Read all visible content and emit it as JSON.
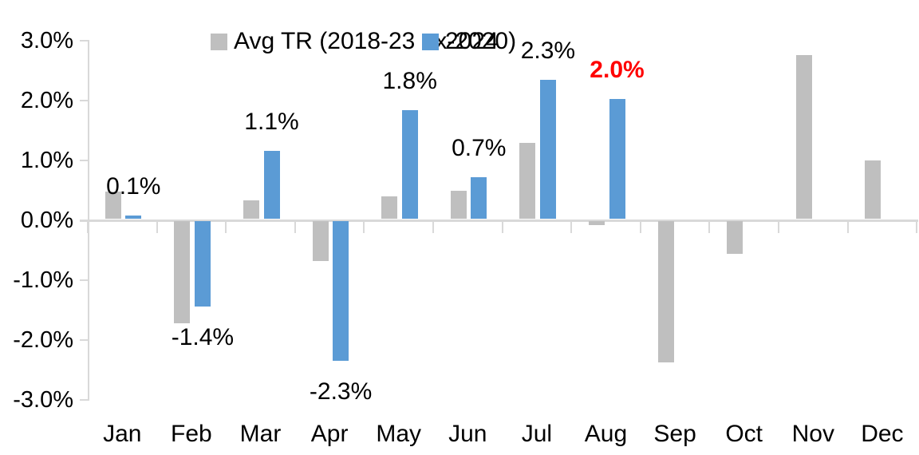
{
  "chart_data": {
    "type": "bar",
    "title": "",
    "categories": [
      "Jan",
      "Feb",
      "Mar",
      "Apr",
      "May",
      "Jun",
      "Jul",
      "Aug",
      "Sep",
      "Oct",
      "Nov",
      "Dec"
    ],
    "series": [
      {
        "name": "Avg TR (2018-23 ex-2020)",
        "color": "#BFBFBF",
        "values": [
          0.45,
          -1.7,
          0.31,
          -0.66,
          0.37,
          0.47,
          1.27,
          -0.06,
          -2.36,
          -0.55,
          2.73,
          0.98
        ]
      },
      {
        "name": "2024",
        "color": "#5B9BD5",
        "values": [
          0.06,
          -1.42,
          1.14,
          -2.33,
          1.82,
          0.69,
          2.32,
          2.0,
          null,
          null,
          null,
          null
        ],
        "data_labels": [
          "0.1%",
          "-1.4%",
          "1.1%",
          "-2.3%",
          "1.8%",
          "0.7%",
          "2.3%",
          "2.0%",
          null,
          null,
          null,
          null
        ],
        "label_highlight": {
          "index": 7,
          "color": "#FF0000",
          "bold": true
        }
      }
    ],
    "y_ticks": [
      {
        "label": "3.0%",
        "value": 3.0
      },
      {
        "label": "2.0%",
        "value": 2.0
      },
      {
        "label": "1.0%",
        "value": 1.0
      },
      {
        "label": "0.0%",
        "value": 0.0
      },
      {
        "label": "-1.0%",
        "value": -1.0
      },
      {
        "label": "-2.0%",
        "value": -2.0
      },
      {
        "label": "-3.0%",
        "value": -3.0
      }
    ],
    "ylim": [
      -3.0,
      3.0
    ],
    "unit": "%",
    "grid": false,
    "legend_position": "top",
    "axis_color": "#D9D9D9",
    "label_color": "#000000",
    "background": "#FFFFFF"
  }
}
